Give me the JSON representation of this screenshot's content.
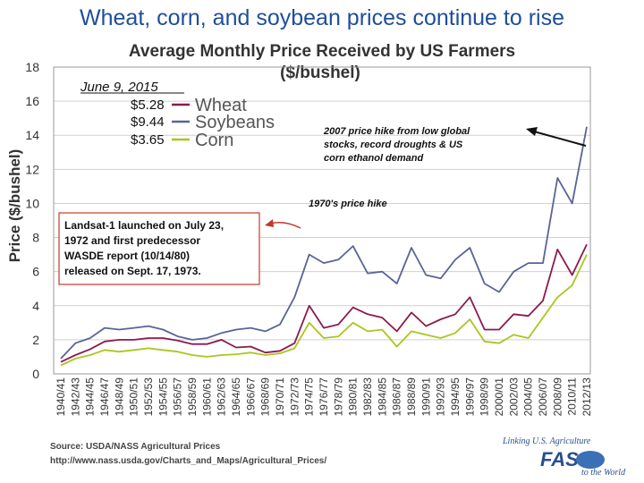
{
  "slide_title": "Wheat, corn, and soybean prices continue to rise",
  "chart_data": {
    "type": "line",
    "title_line1": "Average Monthly Price Received by US Farmers",
    "title_line2": "($/bushel)",
    "ylabel": "Price ($/bushel)",
    "xlabel": "",
    "ylim": [
      0,
      18
    ],
    "yticks": [
      0,
      2,
      4,
      6,
      8,
      10,
      12,
      14,
      16,
      18
    ],
    "grid": true,
    "categories": [
      "1940/41",
      "1942/43",
      "1944/45",
      "1946/47",
      "1948/49",
      "1950/51",
      "1952/53",
      "1954/55",
      "1956/57",
      "1958/59",
      "1960/61",
      "1962/63",
      "1964/65",
      "1966/67",
      "1968/69",
      "1970/71",
      "1972/73",
      "1974/75",
      "1976/77",
      "1978/79",
      "1980/81",
      "1982/83",
      "1984/85",
      "1986/87",
      "1988/89",
      "1990/91",
      "1992/93",
      "1994/95",
      "1996/97",
      "1998/99",
      "2000/01",
      "2002/03",
      "2004/05",
      "2006/07",
      "2008/09",
      "2010/11",
      "2012/13"
    ],
    "series": [
      {
        "name": "Wheat",
        "color": "#8b1a4f",
        "values": [
          0.7,
          1.1,
          1.45,
          1.9,
          2.0,
          2.0,
          2.1,
          2.1,
          1.95,
          1.75,
          1.75,
          2.0,
          1.55,
          1.6,
          1.25,
          1.35,
          1.8,
          4.0,
          2.7,
          2.9,
          3.9,
          3.5,
          3.3,
          2.5,
          3.6,
          2.8,
          3.2,
          3.5,
          4.5,
          2.6,
          2.6,
          3.5,
          3.4,
          4.3,
          7.3,
          5.8,
          7.6
        ]
      },
      {
        "name": "Soybeans",
        "color": "#5a6496",
        "values": [
          0.9,
          1.8,
          2.1,
          2.7,
          2.6,
          2.7,
          2.8,
          2.6,
          2.2,
          2.0,
          2.1,
          2.4,
          2.6,
          2.7,
          2.5,
          2.9,
          4.5,
          7.0,
          6.5,
          6.7,
          7.5,
          5.9,
          6.0,
          5.3,
          7.4,
          5.8,
          5.6,
          6.7,
          7.4,
          5.3,
          4.8,
          6.0,
          6.5,
          6.5,
          11.5,
          10.0,
          14.5
        ]
      },
      {
        "name": "Corn",
        "color": "#aec41e",
        "values": [
          0.5,
          0.9,
          1.1,
          1.4,
          1.3,
          1.4,
          1.5,
          1.4,
          1.3,
          1.1,
          1.0,
          1.1,
          1.15,
          1.25,
          1.1,
          1.2,
          1.5,
          3.0,
          2.1,
          2.2,
          3.0,
          2.5,
          2.6,
          1.6,
          2.5,
          2.3,
          2.1,
          2.4,
          3.2,
          1.9,
          1.8,
          2.3,
          2.1,
          3.3,
          4.5,
          5.2,
          7.0
        ]
      }
    ],
    "legend": {
      "date": "June 9, 2015",
      "placement": "top-left",
      "entries": [
        {
          "price": "$5.28",
          "name": "Wheat"
        },
        {
          "price": "$9.44",
          "name": "Soybeans"
        },
        {
          "price": "$3.65",
          "name": "Corn"
        }
      ]
    },
    "annotations": {
      "hike2007_lines": [
        "2007 price hike from low global",
        "stocks, record droughts & US",
        "corn ethanol demand"
      ],
      "hike1970": "1970's price hike",
      "landsat_lines": [
        "Landsat-1 launched on July 23,",
        "1972 and first predecessor",
        "WASDE report (10/14/80)",
        "released on Sept. 17, 1973."
      ]
    }
  },
  "footer": {
    "source": "Source: USDA/NASS Agricultural Prices",
    "url": "http://www.nass.usda.gov/Charts_and_Maps/Agricultural_Prices/",
    "logo_line": "Linking U.S. Agriculture",
    "logo_big": "FAS",
    "logo_tail": "to the World"
  },
  "colors": {
    "title": "#1f4e9a",
    "annotation_box": "#c0392b",
    "arrow_red": "#c0392b"
  }
}
